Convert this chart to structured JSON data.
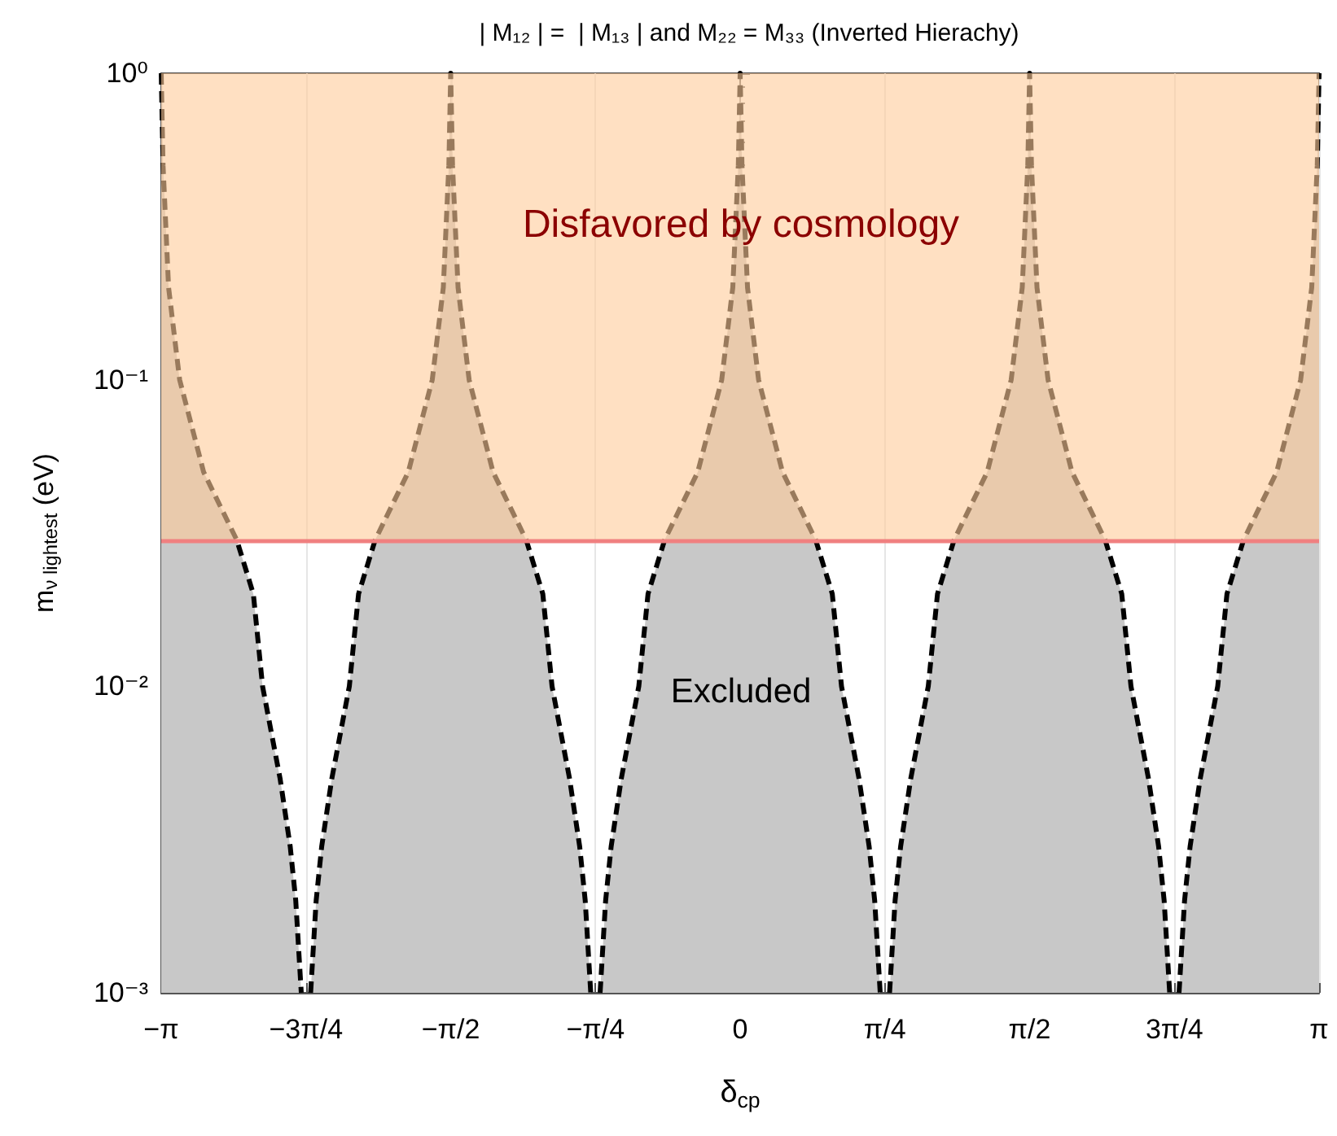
{
  "chart_data": {
    "type": "area",
    "title": "| M₁₂ | =  | M₁₃ | and M₂₂ = M₃₃ (Inverted Hierachy)",
    "xlabel": "δ$_{cp}$",
    "ylabel": "m$_{ν lightest}$ (eV)",
    "log": "y",
    "grid": "x",
    "xlim": [
      -3.1416,
      3.1416
    ],
    "xticks": [
      {
        "value": -3.1416,
        "label": "−π"
      },
      {
        "value": -2.3562,
        "label": "−3π/4"
      },
      {
        "value": -1.5708,
        "label": "−π/2"
      },
      {
        "value": -0.7854,
        "label": "−π/4"
      },
      {
        "value": 0,
        "label": "0"
      },
      {
        "value": 0.7854,
        "label": "π/4"
      },
      {
        "value": 1.5708,
        "label": "π/2"
      },
      {
        "value": 2.3562,
        "label": "3π/4"
      },
      {
        "value": 3.1416,
        "label": "π"
      }
    ],
    "ylim": [
      0.001,
      1
    ],
    "yticks": [
      {
        "value": 0.001,
        "label": "10⁻³"
      },
      {
        "value": 0.01,
        "label": "10⁻²"
      },
      {
        "value": 0.1,
        "label": "10⁻¹"
      },
      {
        "value": 1,
        "label": "10⁰"
      }
    ],
    "x": [
      -3.1416,
      -3.1316,
      -3.1016,
      -3.0416,
      -2.9116,
      -2.7316,
      -2.6416,
      -2.5916,
      -2.4966,
      -2.4416,
      -2.4116,
      -2.3816,
      -2.3562,
      -2.3308,
      -2.3008,
      -2.2708,
      -2.2158,
      -2.1208,
      -2.0708,
      -1.9808,
      -1.8008,
      -1.6708,
      -1.6108,
      -1.5808,
      -1.5708,
      -1.5608,
      -1.5308,
      -1.4708,
      -1.3408,
      -1.1608,
      -1.0708,
      -1.0208,
      -0.9258,
      -0.8708,
      -0.8408,
      -0.8108,
      -0.7854,
      -0.76,
      -0.73,
      -0.7,
      -0.645,
      -0.55,
      -0.5,
      -0.41,
      -0.23,
      -0.1,
      -0.04,
      -0.01,
      0,
      0.01,
      0.04,
      0.1,
      0.23,
      0.41,
      0.5,
      0.55,
      0.645,
      0.7,
      0.73,
      0.76,
      0.7854,
      0.8108,
      0.8408,
      0.8708,
      0.9258,
      1.0208,
      1.0708,
      1.1608,
      1.3408,
      1.4708,
      1.5308,
      1.5608,
      1.5708,
      1.5808,
      1.6108,
      1.6708,
      1.8008,
      1.9808,
      2.0708,
      2.1208,
      2.2158,
      2.2708,
      2.3008,
      2.3308,
      2.3562,
      2.3816,
      2.4116,
      2.4416,
      2.4966,
      2.5916,
      2.6416,
      2.7316,
      2.9116,
      3.0416,
      3.1016,
      3.1316,
      3.1416
    ],
    "series": [
      {
        "color": "#c8c8c8",
        "line_style": "dashed",
        "values": [
          1,
          0.5,
          0.2,
          0.1,
          0.05,
          0.03,
          0.02,
          0.01,
          0.005,
          0.003,
          0.002,
          0.001,
          null,
          0.001,
          0.002,
          0.003,
          0.005,
          0.01,
          0.02,
          0.03,
          0.05,
          0.1,
          0.2,
          0.5,
          1,
          0.5,
          0.2,
          0.1,
          0.05,
          0.03,
          0.02,
          0.01,
          0.005,
          0.003,
          0.002,
          0.001,
          null,
          0.001,
          0.002,
          0.003,
          0.005,
          0.01,
          0.02,
          0.03,
          0.05,
          0.1,
          0.2,
          0.5,
          1,
          0.5,
          0.2,
          0.1,
          0.05,
          0.03,
          0.02,
          0.01,
          0.005,
          0.003,
          0.002,
          0.001,
          null,
          0.001,
          0.002,
          0.003,
          0.005,
          0.01,
          0.02,
          0.03,
          0.05,
          0.1,
          0.2,
          0.5,
          1,
          0.5,
          0.2,
          0.1,
          0.05,
          0.03,
          0.02,
          0.01,
          0.005,
          0.003,
          0.002,
          0.001,
          null,
          0.001,
          0.002,
          0.003,
          0.005,
          0.01,
          0.02,
          0.03,
          0.05,
          0.1,
          0.2,
          0.5,
          1
        ]
      }
    ],
    "bands": [
      {
        "axis": "y",
        "from": 0.03,
        "to": 1,
        "color": "#ffcc99"
      }
    ],
    "ref_lines": [
      {
        "axis": "y",
        "value": 0.03,
        "color": "#f08080",
        "line_style": "solid"
      }
    ],
    "annotations": [
      "Disfavored by cosmology",
      "Excluded"
    ]
  }
}
